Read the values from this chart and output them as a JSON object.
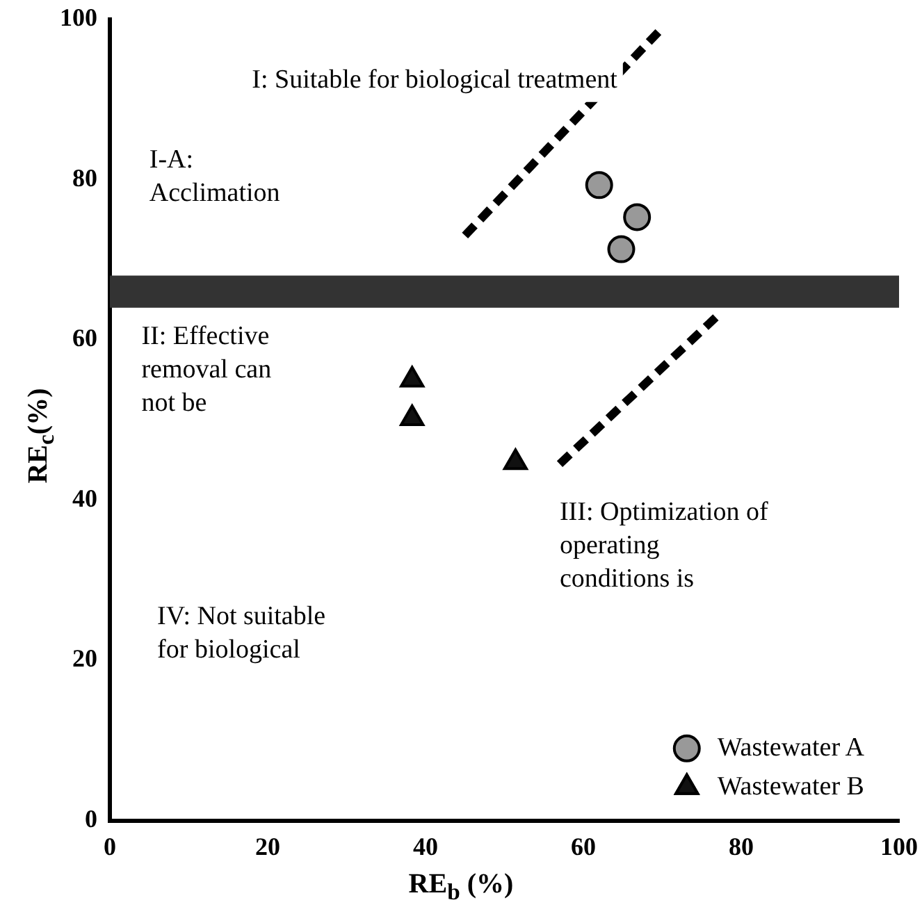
{
  "chart_data": {
    "type": "scatter",
    "xlabel": "RE$_{b}$ (%)",
    "ylabel": "RE$_{c}$(%)",
    "xlim": [
      0,
      100
    ],
    "ylim": [
      0,
      100
    ],
    "xticks": [
      0,
      20,
      40,
      60,
      80,
      100
    ],
    "yticks": [
      0,
      20,
      40,
      60,
      80,
      100
    ],
    "grid": false,
    "legend": "bottom right",
    "series": [
      {
        "name": "Wastewater A",
        "color": "#999999",
        "marker": "circle",
        "x": [
          62,
          66.8,
          64.8
        ],
        "values": [
          79.3,
          75.3,
          71.3
        ]
      },
      {
        "name": "Wastewater B",
        "color": "#111111",
        "marker": "triangle",
        "x": [
          38.3,
          38.3,
          51.4
        ],
        "values": [
          55,
          50.2,
          44.7
        ]
      },
      {
        "type": "line",
        "color": "#000000",
        "marker": "none",
        "line_style": "dashed",
        "x": [
          45,
          69.5
        ],
        "values": [
          73,
          98.4
        ]
      },
      {
        "type": "line",
        "color": "#000000",
        "marker": "none",
        "line_style": "dashed",
        "x": [
          57,
          77
        ],
        "values": [
          44.5,
          63
        ]
      }
    ],
    "bands": [
      {
        "axis": "y",
        "from": 64,
        "to": 68,
        "color": "#333333"
      }
    ],
    "annotations": [
      "I: Suitable for biological treatment",
      "I-A:\nAcclimation",
      "II: Effective\nremoval can\nnot be",
      "III: Optimization of\noperating\nconditions is",
      "IV: Not suitable\nfor biological"
    ]
  }
}
